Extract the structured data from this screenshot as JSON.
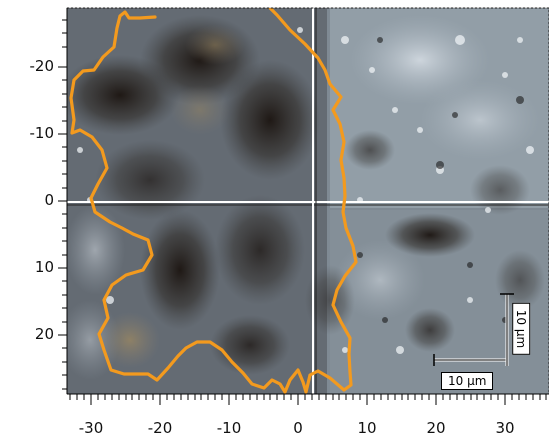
{
  "image": {
    "description_free": true,
    "outline_color": "#f39a1e",
    "crosshair_color": "#ffffff"
  },
  "axes": {
    "y_ticks": [
      "-20",
      "-10",
      "0",
      "10",
      "20"
    ],
    "x_ticks": [
      "-30",
      "-20",
      "-10",
      "0",
      "10",
      "20",
      "30"
    ]
  },
  "scale_bars": {
    "horizontal_label": "10 µm",
    "vertical_label": "10 µm"
  }
}
